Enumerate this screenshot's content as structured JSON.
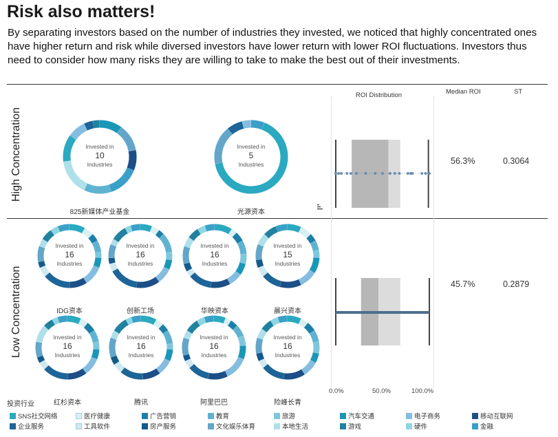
{
  "title": "Risk also matters!",
  "description": "By separating investors based on the number of industries they invested, we noticed that highly concentrated ones have higher return and risk while diversed investors have lower return with lower ROI fluctuations. Investors thus need to consider how many risks they are willing to take to make the best out of their investments.",
  "headers": {
    "roi": "ROI Distribution",
    "median": "Median ROI",
    "st": "ST"
  },
  "axis_ticks": [
    "0.0%",
    "50.0%",
    "100.0%"
  ],
  "legend_title": "投资行业",
  "colors": {
    "box_dark": "#b7b7b7",
    "box_light": "#dcdcdc",
    "whisker": "#444444",
    "dot": "#6a8fb0",
    "strip": "#4e6f8e"
  },
  "legend": [
    {
      "label": "SNS社交网络",
      "color": "#2aa9c0"
    },
    {
      "label": "医疗健康",
      "color": "#d9f0f3"
    },
    {
      "label": "广告营销",
      "color": "#1b7fa8"
    },
    {
      "label": "教育",
      "color": "#5fb3d1"
    },
    {
      "label": "旅游",
      "color": "#7fc7dc"
    },
    {
      "label": "汽车交通",
      "color": "#1a97b7"
    },
    {
      "label": "电子商务",
      "color": "#84bde0"
    },
    {
      "label": "移动互联网",
      "color": "#1c4f87"
    },
    {
      "label": "企业服务",
      "color": "#1d6598"
    },
    {
      "label": "工具软件",
      "color": "#cfe9f0"
    },
    {
      "label": "房产服务",
      "color": "#145a8a"
    },
    {
      "label": "文化娱乐体育",
      "color": "#63a6c9"
    },
    {
      "label": "本地生活",
      "color": "#aee0ea"
    },
    {
      "label": "游戏",
      "color": "#21829f"
    },
    {
      "label": "硬件",
      "color": "#8ed6e3"
    },
    {
      "label": "金融",
      "color": "#3aa0c8"
    }
  ],
  "groups": [
    {
      "label": "High Concentration",
      "median_roi": "56.3%",
      "st": "0.3064"
    },
    {
      "label": "Low Concentration",
      "median_roi": "45.7%",
      "st": "0.2879"
    }
  ],
  "investors": [
    {
      "name": "825新媒体产业基金",
      "line1": "Invested in",
      "count": "10",
      "line3": "Industries",
      "segments": [
        {
          "c": "#1a97b7",
          "v": 10
        },
        {
          "c": "#63a6c9",
          "v": 12
        },
        {
          "c": "#1c4f87",
          "v": 9
        },
        {
          "c": "#3aa0c8",
          "v": 14
        },
        {
          "c": "#5fb3d1",
          "v": 12
        },
        {
          "c": "#aee0ea",
          "v": 16
        },
        {
          "c": "#2aa9c0",
          "v": 12
        },
        {
          "c": "#84bde0",
          "v": 8
        },
        {
          "c": "#1d6598",
          "v": 4
        },
        {
          "c": "#21829f",
          "v": 3
        }
      ]
    },
    {
      "name": "光源资本",
      "line1": "Invested in",
      "count": "5",
      "line3": "Industries",
      "segments": [
        {
          "c": "#3aa0c8",
          "v": 6
        },
        {
          "c": "#2aa9c0",
          "v": 66
        },
        {
          "c": "#63a6c9",
          "v": 17
        },
        {
          "c": "#1d6598",
          "v": 7
        },
        {
          "c": "#84bde0",
          "v": 4
        }
      ]
    },
    {
      "name": "IDG资本",
      "line1": "Invested in",
      "count": "16",
      "line3": "Industries",
      "segments": [
        {
          "c": "#2aa9c0",
          "v": 8
        },
        {
          "c": "#d9f0f3",
          "v": 5
        },
        {
          "c": "#1b7fa8",
          "v": 4
        },
        {
          "c": "#5fb3d1",
          "v": 6
        },
        {
          "c": "#7fc7dc",
          "v": 3
        },
        {
          "c": "#1a97b7",
          "v": 5
        },
        {
          "c": "#84bde0",
          "v": 10
        },
        {
          "c": "#1c4f87",
          "v": 9
        },
        {
          "c": "#1d6598",
          "v": 14
        },
        {
          "c": "#cfe9f0",
          "v": 5
        },
        {
          "c": "#145a8a",
          "v": 3
        },
        {
          "c": "#63a6c9",
          "v": 8
        },
        {
          "c": "#aee0ea",
          "v": 4
        },
        {
          "c": "#21829f",
          "v": 6
        },
        {
          "c": "#8ed6e3",
          "v": 4
        },
        {
          "c": "#3aa0c8",
          "v": 6
        }
      ]
    },
    {
      "name": "创新工场",
      "line1": "Invested in",
      "count": "16",
      "line3": "Industries",
      "segments": [
        {
          "c": "#2aa9c0",
          "v": 6
        },
        {
          "c": "#d9f0f3",
          "v": 4
        },
        {
          "c": "#1b7fa8",
          "v": 3
        },
        {
          "c": "#5fb3d1",
          "v": 10
        },
        {
          "c": "#7fc7dc",
          "v": 4
        },
        {
          "c": "#1a97b7",
          "v": 5
        },
        {
          "c": "#84bde0",
          "v": 8
        },
        {
          "c": "#1c4f87",
          "v": 12
        },
        {
          "c": "#1d6598",
          "v": 15
        },
        {
          "c": "#cfe9f0",
          "v": 4
        },
        {
          "c": "#145a8a",
          "v": 3
        },
        {
          "c": "#63a6c9",
          "v": 7
        },
        {
          "c": "#aee0ea",
          "v": 3
        },
        {
          "c": "#21829f",
          "v": 8
        },
        {
          "c": "#8ed6e3",
          "v": 3
        },
        {
          "c": "#3aa0c8",
          "v": 5
        }
      ]
    },
    {
      "name": "华映资本",
      "line1": "Invested in",
      "count": "16",
      "line3": "Industries",
      "segments": [
        {
          "c": "#2aa9c0",
          "v": 9
        },
        {
          "c": "#d9f0f3",
          "v": 3
        },
        {
          "c": "#1b7fa8",
          "v": 5
        },
        {
          "c": "#5fb3d1",
          "v": 7
        },
        {
          "c": "#7fc7dc",
          "v": 5
        },
        {
          "c": "#1a97b7",
          "v": 6
        },
        {
          "c": "#84bde0",
          "v": 7
        },
        {
          "c": "#1c4f87",
          "v": 10
        },
        {
          "c": "#1d6598",
          "v": 12
        },
        {
          "c": "#cfe9f0",
          "v": 3
        },
        {
          "c": "#145a8a",
          "v": 4
        },
        {
          "c": "#63a6c9",
          "v": 9
        },
        {
          "c": "#aee0ea",
          "v": 5
        },
        {
          "c": "#21829f",
          "v": 6
        },
        {
          "c": "#8ed6e3",
          "v": 4
        },
        {
          "c": "#3aa0c8",
          "v": 5
        }
      ]
    },
    {
      "name": "晨兴资本",
      "line1": "Invested in",
      "count": "15",
      "line3": "Industries",
      "segments": [
        {
          "c": "#2aa9c0",
          "v": 7
        },
        {
          "c": "#d9f0f3",
          "v": 6
        },
        {
          "c": "#1b7fa8",
          "v": 4
        },
        {
          "c": "#5fb3d1",
          "v": 5
        },
        {
          "c": "#7fc7dc",
          "v": 4
        },
        {
          "c": "#1a97b7",
          "v": 8
        },
        {
          "c": "#84bde0",
          "v": 9
        },
        {
          "c": "#1c4f87",
          "v": 11
        },
        {
          "c": "#1d6598",
          "v": 10
        },
        {
          "c": "#cfe9f0",
          "v": 5
        },
        {
          "c": "#145a8a",
          "v": 4
        },
        {
          "c": "#63a6c9",
          "v": 8
        },
        {
          "c": "#aee0ea",
          "v": 6
        },
        {
          "c": "#21829f",
          "v": 7
        },
        {
          "c": "#3aa0c8",
          "v": 6
        }
      ]
    },
    {
      "name": "红杉资本",
      "line1": "Invested in",
      "count": "16",
      "line3": "Industries",
      "segments": [
        {
          "c": "#2aa9c0",
          "v": 7
        },
        {
          "c": "#d9f0f3",
          "v": 4
        },
        {
          "c": "#1b7fa8",
          "v": 5
        },
        {
          "c": "#5fb3d1",
          "v": 6
        },
        {
          "c": "#7fc7dc",
          "v": 4
        },
        {
          "c": "#1a97b7",
          "v": 5
        },
        {
          "c": "#84bde0",
          "v": 9
        },
        {
          "c": "#1c4f87",
          "v": 10
        },
        {
          "c": "#1d6598",
          "v": 13
        },
        {
          "c": "#cfe9f0",
          "v": 4
        },
        {
          "c": "#145a8a",
          "v": 3
        },
        {
          "c": "#63a6c9",
          "v": 8
        },
        {
          "c": "#aee0ea",
          "v": 9
        },
        {
          "c": "#21829f",
          "v": 5
        },
        {
          "c": "#8ed6e3",
          "v": 3
        },
        {
          "c": "#3aa0c8",
          "v": 5
        }
      ]
    },
    {
      "name": "腾讯",
      "line1": "Invested in",
      "count": "16",
      "line3": "Industries",
      "segments": [
        {
          "c": "#2aa9c0",
          "v": 8
        },
        {
          "c": "#d9f0f3",
          "v": 4
        },
        {
          "c": "#1b7fa8",
          "v": 4
        },
        {
          "c": "#5fb3d1",
          "v": 7
        },
        {
          "c": "#7fc7dc",
          "v": 3
        },
        {
          "c": "#1a97b7",
          "v": 6
        },
        {
          "c": "#84bde0",
          "v": 8
        },
        {
          "c": "#1c4f87",
          "v": 9
        },
        {
          "c": "#1d6598",
          "v": 12
        },
        {
          "c": "#cfe9f0",
          "v": 5
        },
        {
          "c": "#145a8a",
          "v": 4
        },
        {
          "c": "#63a6c9",
          "v": 10
        },
        {
          "c": "#aee0ea",
          "v": 4
        },
        {
          "c": "#21829f",
          "v": 8
        },
        {
          "c": "#8ed6e3",
          "v": 3
        },
        {
          "c": "#3aa0c8",
          "v": 5
        }
      ]
    },
    {
      "name": "阿里巴巴",
      "line1": "Invested in",
      "count": "16",
      "line3": "Industries",
      "segments": [
        {
          "c": "#2aa9c0",
          "v": 6
        },
        {
          "c": "#d9f0f3",
          "v": 3
        },
        {
          "c": "#1b7fa8",
          "v": 4
        },
        {
          "c": "#5fb3d1",
          "v": 6
        },
        {
          "c": "#7fc7dc",
          "v": 5
        },
        {
          "c": "#1a97b7",
          "v": 7
        },
        {
          "c": "#84bde0",
          "v": 12
        },
        {
          "c": "#1c4f87",
          "v": 10
        },
        {
          "c": "#1d6598",
          "v": 11
        },
        {
          "c": "#cfe9f0",
          "v": 4
        },
        {
          "c": "#145a8a",
          "v": 3
        },
        {
          "c": "#63a6c9",
          "v": 9
        },
        {
          "c": "#aee0ea",
          "v": 4
        },
        {
          "c": "#21829f",
          "v": 7
        },
        {
          "c": "#8ed6e3",
          "v": 4
        },
        {
          "c": "#3aa0c8",
          "v": 5
        }
      ]
    },
    {
      "name": "险峰长青",
      "line1": "Invested in",
      "count": "16",
      "line3": "Industries",
      "segments": [
        {
          "c": "#2aa9c0",
          "v": 7
        },
        {
          "c": "#d9f0f3",
          "v": 4
        },
        {
          "c": "#1b7fa8",
          "v": 5
        },
        {
          "c": "#5fb3d1",
          "v": 6
        },
        {
          "c": "#7fc7dc",
          "v": 6
        },
        {
          "c": "#1a97b7",
          "v": 5
        },
        {
          "c": "#84bde0",
          "v": 8
        },
        {
          "c": "#1c4f87",
          "v": 11
        },
        {
          "c": "#1d6598",
          "v": 12
        },
        {
          "c": "#cfe9f0",
          "v": 4
        },
        {
          "c": "#145a8a",
          "v": 4
        },
        {
          "c": "#63a6c9",
          "v": 8
        },
        {
          "c": "#aee0ea",
          "v": 5
        },
        {
          "c": "#21829f",
          "v": 6
        },
        {
          "c": "#8ed6e3",
          "v": 4
        },
        {
          "c": "#3aa0c8",
          "v": 5
        }
      ]
    }
  ],
  "chart_data": {
    "type": "box",
    "title": "ROI Distribution",
    "xlim": [
      0,
      1
    ],
    "x_ticks": [
      "0.0%",
      "50.0%",
      "100.0%"
    ],
    "series": [
      {
        "name": "High Concentration",
        "min": 0.0,
        "q1": 0.17,
        "median": 0.563,
        "q3": 0.69,
        "max": 0.99,
        "points": [
          0.0,
          0.03,
          0.06,
          0.12,
          0.16,
          0.22,
          0.32,
          0.42,
          0.5,
          0.58,
          0.63,
          0.68,
          0.77,
          0.8,
          0.82,
          0.92,
          0.96,
          1.0
        ]
      },
      {
        "name": "Low Concentration",
        "min": 0.0,
        "q1": 0.27,
        "median": 0.457,
        "q3": 0.69,
        "max": 1.0
      }
    ]
  }
}
